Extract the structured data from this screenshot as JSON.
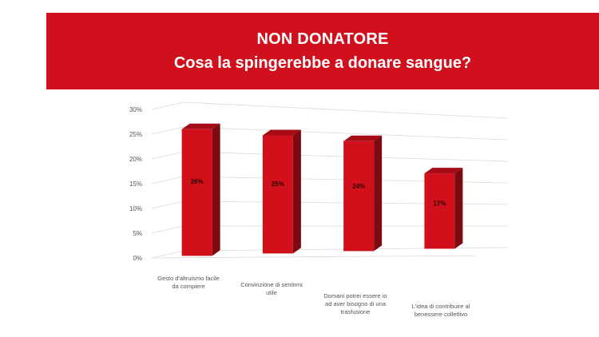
{
  "header": {
    "title_line1": "NON DONATORE",
    "title_line2": "Cosa la spingerebbe a donare sangue?"
  },
  "colors": {
    "banner": "#d0101c",
    "bar_front": "#d1101b",
    "bar_side": "#7d0a10",
    "bar_top": "#a50c15",
    "grid": "#d9d9d9",
    "text": "#555555"
  },
  "chart_data": {
    "type": "bar",
    "style": "3d-column",
    "categories": [
      "Gesto d'altruismo facile da compiere",
      "Convinzione di sentirmi utile",
      "Domani potrei essere io ad aver bisogno di una trasfusione",
      "L'idea di contribuire al benessere collettivo"
    ],
    "category_lines": [
      [
        "Gesto d'altruismo facile",
        "da compiere"
      ],
      [
        "Convinzione di sentirmi",
        "utile"
      ],
      [
        "Domani potrei essere io",
        "ad aver bisogno di una",
        "trasfusione"
      ],
      [
        "L'idea di contribuire al",
        "benessere collettivo"
      ]
    ],
    "values": [
      26,
      25,
      24,
      17
    ],
    "data_labels": [
      "26%",
      "25%",
      "24%",
      "17%"
    ],
    "y_ticks": [
      "0%",
      "5%",
      "10%",
      "15%",
      "20%",
      "25%",
      "30%"
    ],
    "ylim": [
      0,
      30
    ],
    "unit": "%",
    "grid": true,
    "legend": "none"
  }
}
